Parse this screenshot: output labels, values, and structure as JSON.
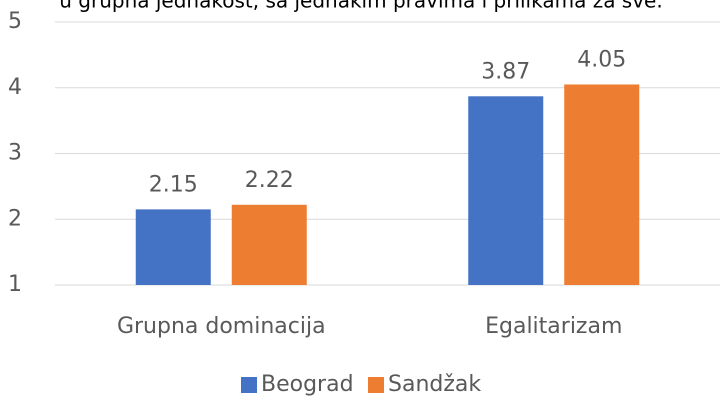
{
  "chart_data": {
    "type": "bar",
    "title": "u grupna jednakost, sa jednakim pravima i prilikama za sve.",
    "categories": [
      "Grupna dominacija",
      "Egalitarizam"
    ],
    "series": [
      {
        "name": "Beograd",
        "color": "#4472c4",
        "values": [
          2.15,
          3.87
        ]
      },
      {
        "name": "Sandžak",
        "color": "#ed7d31",
        "values": [
          2.22,
          4.05
        ]
      }
    ],
    "ylim": [
      1,
      5
    ],
    "yticks": [
      1,
      2,
      3,
      4,
      5
    ],
    "grid": true,
    "legend": "bottom"
  }
}
